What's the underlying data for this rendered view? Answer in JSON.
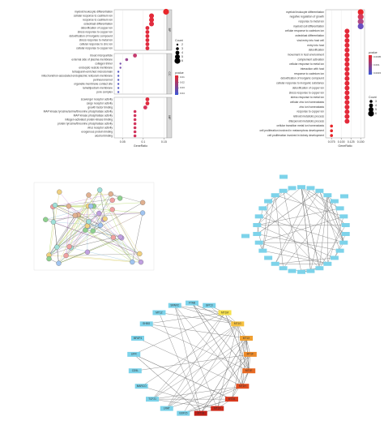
{
  "chart_data": [
    {
      "type": "dot",
      "x_label": "GeneRatio",
      "xlim": [
        0.03,
        0.157
      ],
      "xticks": [
        0.05,
        0.1,
        0.15
      ],
      "size_title": "Count",
      "size_ticks": [
        2,
        3,
        4,
        5,
        6
      ],
      "color_title": "pvalue",
      "color_ticks": [
        0.01,
        0.02,
        0.03,
        0.04
      ],
      "facets": [
        {
          "label": "BP",
          "categories": [
            "myeloid leukocyte differentiation",
            "cellular response to cadmium ion",
            "response to cadmium ion",
            "osteoblast differentiation",
            "detoxification of copper ion",
            "stress response to copper ion",
            "detoxification of inorganic compound",
            "stress response to metal ion",
            "cellular response to zinc ion",
            "cellular response to copper ion"
          ],
          "values": [
            0.155,
            0.12,
            0.12,
            0.12,
            0.11,
            0.11,
            0.11,
            0.11,
            0.11,
            0.11
          ],
          "sizes": [
            6,
            5,
            5,
            5,
            4,
            4,
            4,
            4,
            4,
            4
          ],
          "colors": [
            "#e8262a",
            "#e32a3a",
            "#e32a3a",
            "#e02c40",
            "#e12a3c",
            "#e12a3c",
            "#e12a3c",
            "#e12a3c",
            "#e02c40",
            "#e02c40"
          ]
        },
        {
          "label": "CC",
          "categories": [
            "blood microparticle",
            "external side of plasma membrane",
            "collagen trimer",
            "endocytic vesicle membrane",
            "tetraspanin-enriched microdomain",
            "mitochondrion-associated endoplasmic reticulum membrane",
            "perineuronal net",
            "organelle membrane contact site",
            "lamellipodium membrane",
            "pore complex"
          ],
          "values": [
            0.08,
            0.06,
            0.045,
            0.045,
            0.04,
            0.04,
            0.04,
            0.04,
            0.04,
            0.04
          ],
          "sizes": [
            4,
            3,
            2,
            2,
            2,
            2,
            2,
            2,
            2,
            2
          ],
          "colors": [
            "#c63a6e",
            "#9c4a93",
            "#7a55ad",
            "#7a55ad",
            "#5b5fc4",
            "#5b5fc4",
            "#5b5fc4",
            "#5b5fc4",
            "#5b5fc4",
            "#5b5fc4"
          ]
        },
        {
          "label": "MF",
          "categories": [
            "scavenger receptor activity",
            "cargo receptor activity",
            "growth factor binding",
            "MAP kinase tyrosine/serine/threonine phosphatase activity",
            "MAP kinase phosphatase activity",
            "mitogen-activated protein kinase binding",
            "protein tyrosine/threonine phosphatase activity",
            "virus receptor activity",
            "exogenous protein binding",
            "alcohol binding"
          ],
          "values": [
            0.11,
            0.11,
            0.105,
            0.08,
            0.08,
            0.08,
            0.08,
            0.08,
            0.08,
            0.08
          ],
          "sizes": [
            4,
            4,
            4,
            3,
            3,
            3,
            3,
            3,
            3,
            3
          ],
          "colors": [
            "#e02c40",
            "#e02c40",
            "#d8325a",
            "#d2365e",
            "#d2365e",
            "#d2365e",
            "#d2365e",
            "#d2365e",
            "#d2365e",
            "#d2365e"
          ]
        }
      ]
    },
    {
      "type": "dot",
      "x_label": "GeneRatio",
      "xlim": [
        0.06,
        0.16
      ],
      "xticks": [
        0.075,
        {
          "value": 0.1,
          "label": "0.100"
        },
        0.125,
        {
          "value": 0.15,
          "label": "0.150"
        }
      ],
      "size_title": "Count",
      "size_ticks": [
        3,
        4,
        5,
        6
      ],
      "color_title": "pvalue",
      "color_ticks": [
        0.0005,
        0.001,
        0.0015
      ],
      "facets": [
        {
          "categories": [
            "myeloid leukocyte differentiation",
            "negative regulation of growth",
            "response to metal ion",
            "myeloid cell differentiation",
            "cellular response to cadmium ion",
            "osteoblast differentiation",
            "viral entry into host cell",
            "entry into host",
            "detoxification",
            "movement in host environment",
            "complement activation",
            "cellular response to metal ion",
            "interaction with host",
            "response to cadmium ion",
            "detoxification of inorganic compound",
            "cellular response to inorganic substance",
            "detoxification of copper ion",
            "stress response to copper ion",
            "stress response to metal ion",
            "cellular zinc ion homeostasis",
            "zinc ion homeostasis",
            "response to copper ion",
            "retinoid metabolic process",
            "diterpenoid metabolic process",
            "cellular transition metal ion homeostasis",
            "cell proliferation involved in metanephros development",
            "cell proliferation involved in kidney development"
          ],
          "values": [
            0.15,
            0.15,
            0.15,
            0.15,
            0.115,
            0.115,
            0.115,
            0.115,
            0.115,
            0.115,
            0.115,
            0.115,
            0.115,
            0.115,
            0.115,
            0.115,
            0.115,
            0.115,
            0.115,
            0.115,
            0.115,
            0.115,
            0.115,
            0.115,
            0.075,
            0.075,
            0.075
          ],
          "sizes": [
            6,
            6,
            6,
            6,
            5,
            5,
            5,
            5,
            5,
            5,
            5,
            5,
            5,
            5,
            5,
            5,
            5,
            5,
            5,
            5,
            5,
            5,
            5,
            5,
            3,
            3,
            3
          ],
          "colors": [
            "#e8262a",
            "#d63a5a",
            "#b24885",
            "#6a4fc0",
            "#e32a3a",
            "#e32a3a",
            "#e32a3a",
            "#e32a3a",
            "#e32a3a",
            "#e32a3a",
            "#e32a3a",
            "#e32a3a",
            "#e32a3a",
            "#e32a3a",
            "#e32a3a",
            "#e32a3a",
            "#e32a3a",
            "#e32a3a",
            "#e32a3a",
            "#e32a3a",
            "#e32a3a",
            "#e32a3a",
            "#e32a3a",
            "#e32a3a",
            "#e8262a",
            "#e8262a",
            "#e8262a"
          ]
        }
      ]
    }
  ],
  "network": {
    "nodes": [
      {
        "label": "SPARC"
      },
      {
        "label": "FTAB"
      },
      {
        "label": "GPC3"
      },
      {
        "label": "MT1M"
      },
      {
        "label": "MT1G"
      },
      {
        "label": "MT1X"
      },
      {
        "label": "MT1F"
      },
      {
        "label": "MT1E"
      },
      {
        "label": "MT1H"
      },
      {
        "label": "MT2A"
      },
      {
        "label": "MT1A"
      },
      {
        "label": "MT1B"
      },
      {
        "label": "GDF15"
      },
      {
        "label": "LRAT"
      },
      {
        "label": "TCF21"
      },
      {
        "label": "MARCO"
      },
      {
        "label": "CD5L"
      },
      {
        "label": "LIFR"
      },
      {
        "label": "MFAP4"
      },
      {
        "label": "SHBG"
      },
      {
        "label": "MT1Z"
      }
    ]
  }
}
